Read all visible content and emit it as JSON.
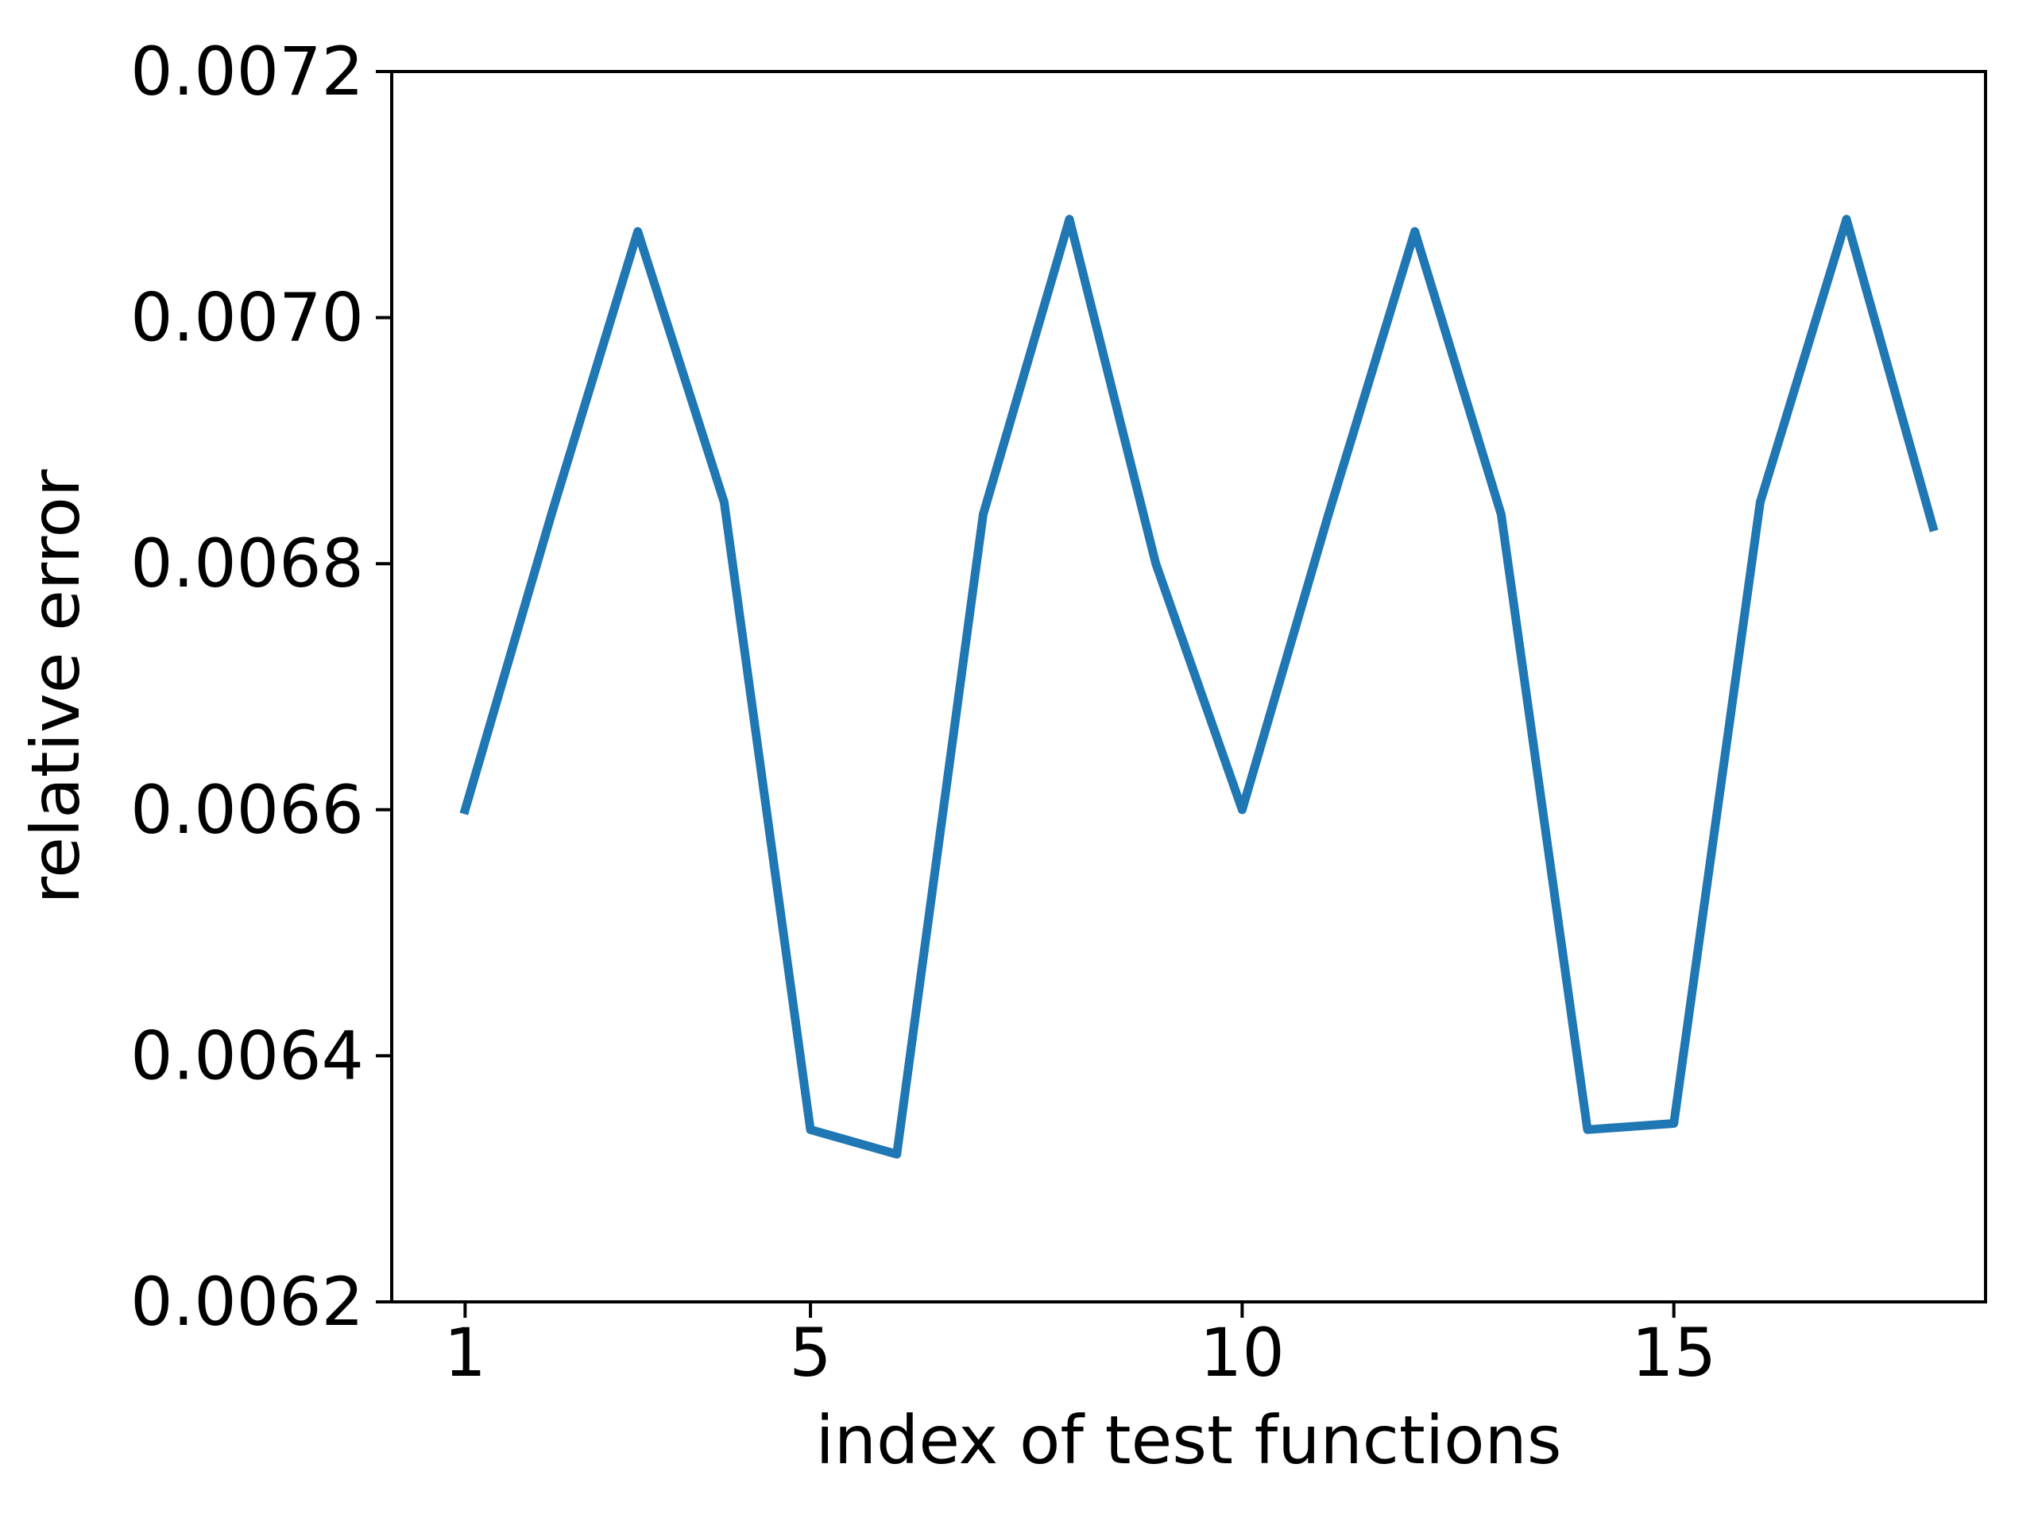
{
  "figure": {
    "background_color": "#ffffff",
    "axis_color": "#000000",
    "accent_color": "#1f77b4"
  },
  "chart_data": {
    "type": "line",
    "title": "",
    "xlabel": "index of test functions",
    "ylabel": "relative error",
    "x": [
      1,
      2,
      3,
      4,
      5,
      6,
      7,
      8,
      9,
      10,
      11,
      12,
      13,
      14,
      15,
      16,
      17,
      18
    ],
    "series": [
      {
        "name": "relative error",
        "color": "#1f77b4",
        "values": [
          0.0066,
          0.00684,
          0.00707,
          0.00685,
          0.00634,
          0.00632,
          0.00684,
          0.00708,
          0.0068,
          0.0066,
          0.00684,
          0.00707,
          0.00684,
          0.00634,
          0.006345,
          0.00685,
          0.00708,
          0.00683
        ]
      }
    ],
    "xtick_values": [
      1,
      5,
      10,
      15
    ],
    "xtick_labels": [
      "1",
      "5",
      "10",
      "15"
    ],
    "ytick_values": [
      0.0062,
      0.0064,
      0.0066,
      0.0068,
      0.007,
      0.0072
    ],
    "ytick_labels": [
      "0.0062",
      "0.0064",
      "0.0066",
      "0.0068",
      "0.0070",
      "0.0072"
    ],
    "xlim": [
      0.15,
      18.61
    ],
    "ylim": [
      0.0062,
      0.0072
    ],
    "grid": false,
    "legend_position": "none"
  }
}
